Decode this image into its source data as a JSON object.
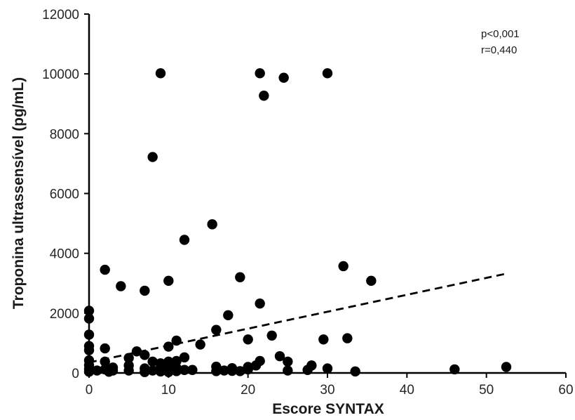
{
  "chart_data": {
    "type": "scatter",
    "xlabel": "Escore SYNTAX",
    "ylabel": "Troponina ultrassensível (pg/mL)",
    "xlim": [
      0,
      60
    ],
    "ylim": [
      0,
      12000
    ],
    "x_ticks": [
      0,
      10,
      20,
      30,
      40,
      50,
      60
    ],
    "y_ticks": [
      0,
      2000,
      4000,
      6000,
      8000,
      10000,
      12000
    ],
    "annotations": [
      "p<0,001",
      "r=0,440"
    ],
    "trendline": {
      "style": "dashed",
      "x": [
        0,
        52.5
      ],
      "y": [
        350,
        3320
      ]
    },
    "series": [
      {
        "points": [
          [
            0,
            2080
          ],
          [
            0,
            1820
          ],
          [
            0,
            1280
          ],
          [
            0,
            900
          ],
          [
            0,
            760
          ],
          [
            0,
            420
          ],
          [
            0,
            260
          ],
          [
            0,
            130
          ],
          [
            0,
            40
          ],
          [
            1,
            80
          ],
          [
            2,
            3450
          ],
          [
            2,
            820
          ],
          [
            2,
            380
          ],
          [
            2,
            120
          ],
          [
            2.5,
            40
          ],
          [
            3,
            180
          ],
          [
            3,
            80
          ],
          [
            4,
            2900
          ],
          [
            5,
            500
          ],
          [
            5,
            250
          ],
          [
            5,
            80
          ],
          [
            6,
            720
          ],
          [
            7,
            2750
          ],
          [
            7,
            600
          ],
          [
            7,
            150
          ],
          [
            7,
            30
          ],
          [
            8,
            7220
          ],
          [
            8,
            380
          ],
          [
            8,
            80
          ],
          [
            9,
            10020
          ],
          [
            9,
            320
          ],
          [
            9,
            180
          ],
          [
            9,
            50
          ],
          [
            10,
            3080
          ],
          [
            10,
            880
          ],
          [
            10,
            380
          ],
          [
            10,
            200
          ],
          [
            10,
            100
          ],
          [
            10,
            30
          ],
          [
            11,
            1080
          ],
          [
            11,
            400
          ],
          [
            11,
            170
          ],
          [
            11,
            60
          ],
          [
            12,
            4450
          ],
          [
            12,
            520
          ],
          [
            12,
            100
          ],
          [
            13,
            100
          ],
          [
            14,
            950
          ],
          [
            15.5,
            4970
          ],
          [
            16,
            1440
          ],
          [
            16,
            210
          ],
          [
            16,
            60
          ],
          [
            17,
            80
          ],
          [
            17.5,
            1930
          ],
          [
            18,
            160
          ],
          [
            18,
            70
          ],
          [
            19,
            3200
          ],
          [
            19,
            60
          ],
          [
            20,
            1120
          ],
          [
            20,
            200
          ],
          [
            20,
            120
          ],
          [
            21,
            250
          ],
          [
            21.5,
            10020
          ],
          [
            21.5,
            2320
          ],
          [
            21.5,
            400
          ],
          [
            22,
            9270
          ],
          [
            23,
            1250
          ],
          [
            24,
            560
          ],
          [
            24.5,
            9870
          ],
          [
            25,
            380
          ],
          [
            25,
            80
          ],
          [
            27.5,
            100
          ],
          [
            28,
            250
          ],
          [
            29.5,
            1120
          ],
          [
            30,
            10020
          ],
          [
            30,
            150
          ],
          [
            32,
            3570
          ],
          [
            32.5,
            1160
          ],
          [
            33.5,
            50
          ],
          [
            35.5,
            3080
          ],
          [
            46,
            120
          ],
          [
            52.5,
            200
          ]
        ]
      }
    ]
  }
}
